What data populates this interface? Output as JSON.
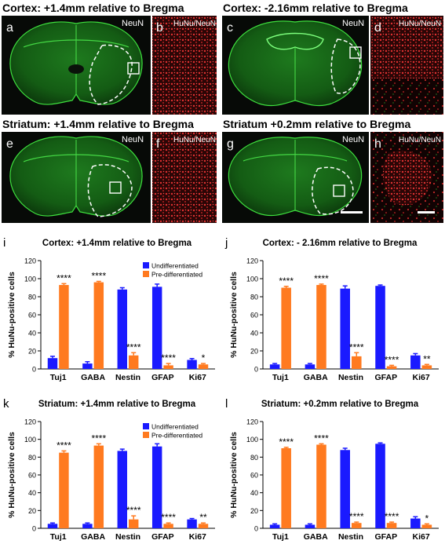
{
  "colors": {
    "undifferentiated": "#1a1aff",
    "pre_differentiated": "#ff7a1f",
    "neun_green": "#2fc22f",
    "hunu_red": "#d23030",
    "dark_bg": "#070a07"
  },
  "images": [
    {
      "title": "Cortex: +1.4mm relative to Bregma",
      "main": {
        "letter": "a",
        "label": "NeuN",
        "outline": "cortex-right"
      },
      "inset": {
        "letter": "b",
        "label": "HuNu/NeuN"
      }
    },
    {
      "title": "Cortex: -2.16mm relative to Bregma",
      "main": {
        "letter": "c",
        "label": "NeuN",
        "outline": "cortex-right-caudal"
      },
      "inset": {
        "letter": "d",
        "label": "HuNu/NeuN"
      }
    },
    {
      "title": "Striatum: +1.4mm relative to Bregma",
      "main": {
        "letter": "e",
        "label": "NeuN",
        "outline": "striatum-right"
      },
      "inset": {
        "letter": "f",
        "label": "HuNu/NeuN"
      }
    },
    {
      "title": "Striatum +0.2mm relative to Bregma",
      "main": {
        "letter": "g",
        "label": "NeuN",
        "outline": "striatum-deep"
      },
      "inset": {
        "letter": "h",
        "label": "HuNu/NeuN"
      }
    }
  ],
  "chart_data": [
    {
      "type": "bar",
      "panel": "i",
      "title": "Cortex: +1.4mm relative to Bregma",
      "ylabel": "% HuNu-positive cells",
      "ylim": [
        0,
        120
      ],
      "yticks": [
        0,
        20,
        40,
        60,
        80,
        100,
        120
      ],
      "categories": [
        "Tuj1",
        "GABA",
        "Nestin",
        "GFAP",
        "Ki67"
      ],
      "series": [
        {
          "name": "Undifferentiated",
          "values": [
            12,
            6,
            88,
            91,
            10
          ],
          "errors": [
            2,
            2,
            2,
            3,
            1.5
          ]
        },
        {
          "name": "Pre-differentiated",
          "values": [
            93,
            96,
            15,
            4,
            5
          ],
          "errors": [
            1.5,
            1,
            3,
            2,
            1
          ]
        }
      ],
      "significance": [
        "****",
        "****",
        "****",
        "****",
        "*"
      ],
      "legend": {
        "position": "top-right",
        "show": true
      }
    },
    {
      "type": "bar",
      "panel": "j",
      "title": "Cortex: - 2.16mm relative to Bregma",
      "ylabel": "% HuNu-positive cells",
      "ylim": [
        0,
        120
      ],
      "yticks": [
        0,
        20,
        40,
        60,
        80,
        100,
        120
      ],
      "categories": [
        "Tuj1",
        "GABA",
        "Nestin",
        "GFAP",
        "Ki67"
      ],
      "series": [
        {
          "name": "Undifferentiated",
          "values": [
            5,
            5,
            89,
            92,
            15
          ],
          "errors": [
            1,
            1,
            3,
            1,
            2
          ]
        },
        {
          "name": "Pre-differentiated",
          "values": [
            90,
            93,
            14,
            3,
            4
          ],
          "errors": [
            1.5,
            1,
            4,
            1,
            1
          ]
        }
      ],
      "significance": [
        "****",
        "****",
        "****",
        "****",
        "**"
      ],
      "legend": {
        "show": false
      }
    },
    {
      "type": "bar",
      "panel": "k",
      "title": "Striatum: +1.4mm relative to Bregma",
      "ylabel": "% HuNu-positive cells",
      "ylim": [
        0,
        120
      ],
      "yticks": [
        0,
        20,
        40,
        60,
        80,
        100,
        120
      ],
      "categories": [
        "Tuj1",
        "GABA",
        "Nestin",
        "GFAP",
        "Ki67"
      ],
      "series": [
        {
          "name": "Undifferentiated",
          "values": [
            5,
            5,
            87,
            92,
            10
          ],
          "errors": [
            1,
            1,
            2,
            3,
            1
          ]
        },
        {
          "name": "Pre-differentiated",
          "values": [
            85,
            93,
            10,
            5,
            5
          ],
          "errors": [
            2,
            2,
            4,
            1,
            1
          ]
        }
      ],
      "significance": [
        "****",
        "****",
        "****",
        "****",
        "**"
      ],
      "legend": {
        "position": "top-right",
        "show": true
      }
    },
    {
      "type": "bar",
      "panel": "l",
      "title": "Striatum: +0.2mm relative to Bregma",
      "ylabel": "% HuNu-positive cells",
      "ylim": [
        0,
        120
      ],
      "yticks": [
        0,
        20,
        40,
        60,
        80,
        100,
        120
      ],
      "categories": [
        "Tuj1",
        "GABA",
        "Nestin",
        "GFAP",
        "Ki67"
      ],
      "series": [
        {
          "name": "Undifferentiated",
          "values": [
            4,
            4,
            88,
            95,
            11
          ],
          "errors": [
            1,
            1,
            2,
            1,
            2
          ]
        },
        {
          "name": "Pre-differentiated",
          "values": [
            90,
            94,
            6,
            6,
            4
          ],
          "errors": [
            1,
            1,
            1,
            1,
            1
          ]
        }
      ],
      "significance": [
        "****",
        "****",
        "****",
        "****",
        "*"
      ],
      "legend": {
        "show": false
      }
    }
  ]
}
